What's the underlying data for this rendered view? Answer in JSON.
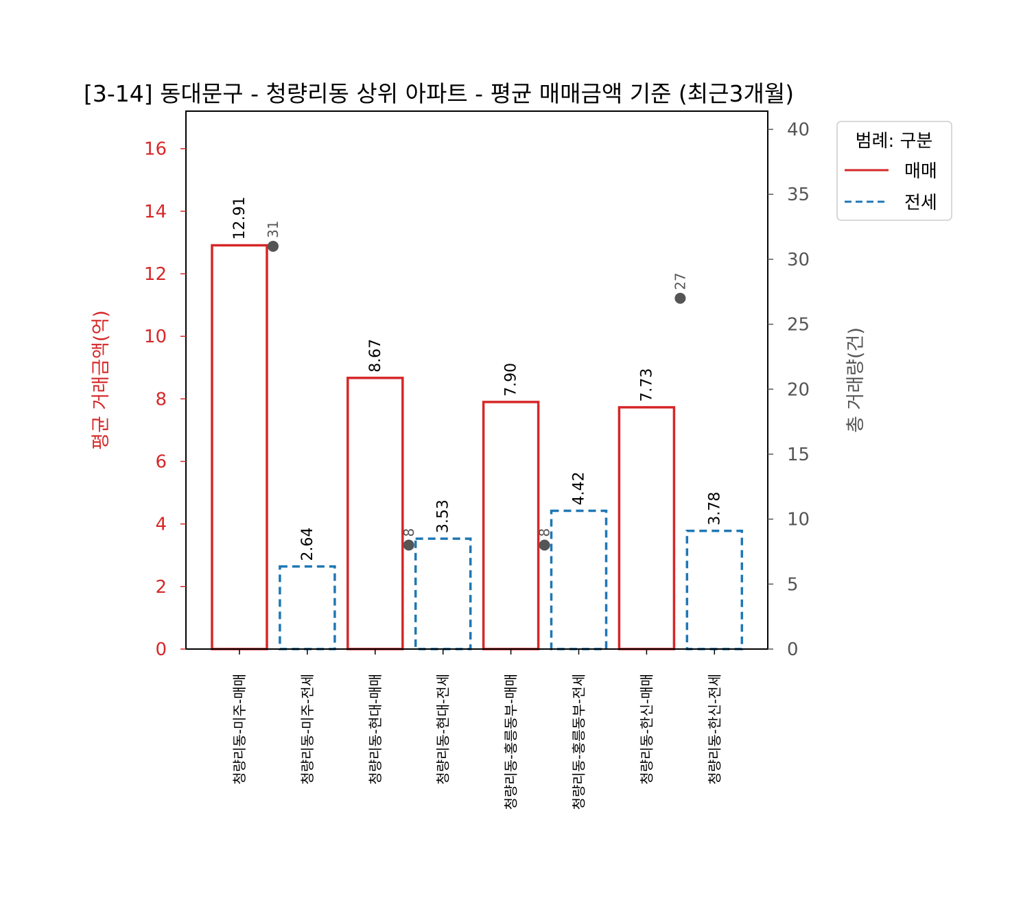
{
  "chart_data": {
    "type": "bar",
    "title": "[3-14] 동대문구 - 청량리동 상위 아파트 - 평균 매매금액 기준 (최근3개월)",
    "xlabel": "",
    "ylabel": "평균 거래금액(억)",
    "y2label": "총 거래량(건)",
    "ylim": [
      0,
      17.2
    ],
    "y2lim": [
      0,
      41.4
    ],
    "yticks": [
      0,
      2,
      4,
      6,
      8,
      10,
      12,
      14,
      16
    ],
    "y2ticks": [
      0,
      5,
      10,
      15,
      20,
      25,
      30,
      35,
      40
    ],
    "grid": false,
    "legend_position": "upper right, outside plot",
    "legend": {
      "title": "범례: 구분",
      "entries": [
        {
          "label": "매매",
          "style": "solid",
          "color": "#d62728"
        },
        {
          "label": "전세",
          "style": "dashed",
          "color": "#1f77b4"
        }
      ]
    },
    "categories": [
      "청량리동-미주-매매",
      "청량리동-미주-전세",
      "청량리동-현대-매매",
      "청량리동-현대-전세",
      "청량리동-홍릉동부-매매",
      "청량리동-홍릉동부-전세",
      "청량리동-한신-매매",
      "청량리동-한신-전세"
    ],
    "values": [
      12.91,
      2.64,
      8.67,
      3.53,
      7.9,
      4.42,
      7.73,
      3.78
    ],
    "value_labels": [
      "12.91",
      "2.64",
      "8.67",
      "3.53",
      "7.90",
      "4.42",
      "7.73",
      "3.78"
    ],
    "types": [
      "매매",
      "전세",
      "매매",
      "전세",
      "매매",
      "전세",
      "매매",
      "전세"
    ],
    "series": [
      {
        "name": "평균 거래금액(억)",
        "axis": "left",
        "kind": "bar",
        "values": [
          12.91,
          2.64,
          8.67,
          3.53,
          7.9,
          4.42,
          7.73,
          3.78
        ]
      },
      {
        "name": "총 거래량(건)",
        "axis": "right",
        "kind": "scatter",
        "points": [
          {
            "category_index": 0,
            "value": 31,
            "label": "31"
          },
          {
            "category_index": 2,
            "value": 8,
            "label": "8"
          },
          {
            "category_index": 4,
            "value": 8,
            "label": "8"
          },
          {
            "category_index": 6,
            "value": 27,
            "label": "27"
          }
        ]
      }
    ],
    "colors": {
      "sale": "#d62728",
      "jeonse": "#1f77b4",
      "count_marker": "#555555",
      "right_axis": "#555555"
    }
  }
}
